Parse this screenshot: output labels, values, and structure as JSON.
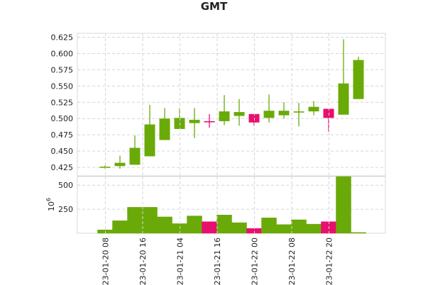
{
  "chart_data": {
    "type": "candlestick",
    "title": "GMT",
    "colors": {
      "up": "#6aaa08",
      "down": "#e8106e",
      "grid": "#d6d6d6",
      "axis": "#d9d9d9"
    },
    "x_tick_labels": [
      "2023-01-20 08",
      "2023-01-20 16",
      "2023-01-21 04",
      "2023-01-21 16",
      "2023-01-22 00",
      "2023-01-22 08",
      "2023-01-22 20"
    ],
    "x_tick_candle_index": [
      0.5,
      3,
      5.5,
      8,
      10.5,
      13,
      15.5
    ],
    "price_axis": {
      "ylim": [
        0.412,
        0.631
      ],
      "ticks": [
        0.425,
        0.45,
        0.475,
        0.5,
        0.525,
        0.55,
        0.575,
        0.6,
        0.625
      ]
    },
    "volume_axis": {
      "scale_label": "10^6",
      "scale_base": "10",
      "scale_exp": "6",
      "ylim": [
        0,
        590
      ],
      "ticks": [
        250,
        500
      ]
    },
    "candles": [
      {
        "open": 0.426,
        "high": 0.428,
        "low": 0.423,
        "close": 0.426,
        "volume": 35
      },
      {
        "open": 0.427,
        "high": 0.443,
        "low": 0.423,
        "close": 0.432,
        "volume": 130
      },
      {
        "open": 0.429,
        "high": 0.474,
        "low": 0.429,
        "close": 0.455,
        "volume": 270
      },
      {
        "open": 0.442,
        "high": 0.521,
        "low": 0.442,
        "close": 0.491,
        "volume": 270
      },
      {
        "open": 0.467,
        "high": 0.516,
        "low": 0.467,
        "close": 0.5,
        "volume": 170
      },
      {
        "open": 0.484,
        "high": 0.516,
        "low": 0.484,
        "close": 0.501,
        "volume": 100
      },
      {
        "open": 0.493,
        "high": 0.516,
        "low": 0.47,
        "close": 0.498,
        "volume": 180
      },
      {
        "open": 0.496,
        "high": 0.507,
        "low": 0.486,
        "close": 0.495,
        "volume": 120
      },
      {
        "open": 0.496,
        "high": 0.536,
        "low": 0.49,
        "close": 0.511,
        "volume": 190
      },
      {
        "open": 0.504,
        "high": 0.53,
        "low": 0.489,
        "close": 0.51,
        "volume": 110
      },
      {
        "open": 0.507,
        "high": 0.507,
        "low": 0.489,
        "close": 0.494,
        "volume": 50
      },
      {
        "open": 0.501,
        "high": 0.537,
        "low": 0.494,
        "close": 0.512,
        "volume": 160
      },
      {
        "open": 0.505,
        "high": 0.525,
        "low": 0.5,
        "close": 0.512,
        "volume": 90
      },
      {
        "open": 0.51,
        "high": 0.524,
        "low": 0.488,
        "close": 0.511,
        "volume": 140
      },
      {
        "open": 0.511,
        "high": 0.527,
        "low": 0.505,
        "close": 0.518,
        "volume": 95
      },
      {
        "open": 0.515,
        "high": 0.515,
        "low": 0.48,
        "close": 0.501,
        "volume": 120
      },
      {
        "open": 0.506,
        "high": 0.622,
        "low": 0.506,
        "close": 0.554,
        "volume": 600
      },
      {
        "open": 0.53,
        "high": 0.595,
        "low": 0.53,
        "close": 0.59,
        "volume": 8
      }
    ]
  }
}
